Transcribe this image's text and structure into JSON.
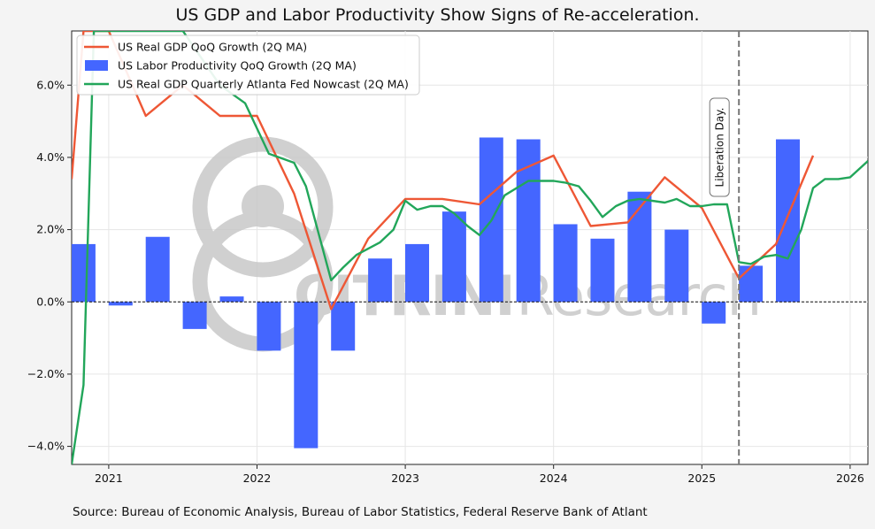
{
  "title": "US GDP and Labor Productivity Show Signs of Re-acceleration.",
  "source": "Source: Bureau of Economic Analysis, Bureau of Labor Statistics, Federal Reserve Bank of Atlant",
  "watermark": {
    "bold": "CITRINI",
    "light": "Research"
  },
  "chart_data": {
    "type": "bar",
    "title": "US GDP and Labor Productivity Show Signs of Re-acceleration.",
    "xlim": [
      2020.75,
      2026.12
    ],
    "ylim": [
      -4.5,
      7.5
    ],
    "x_ticks": [
      2021,
      2022,
      2023,
      2024,
      2025,
      2026
    ],
    "x_tick_labels": [
      "2021",
      "2022",
      "2023",
      "2024",
      "2025",
      "2026"
    ],
    "y_ticks": [
      -4,
      -2,
      0,
      2,
      4,
      6
    ],
    "y_tick_labels": [
      "−4.0%",
      "−2.0%",
      "0.0%",
      "2.0%",
      "4.0%",
      "6.0%"
    ],
    "grid": true,
    "legend_position": "top-left",
    "zero_line": true,
    "annotations": [
      {
        "x": 2025.25,
        "text": "Liberation Day."
      }
    ],
    "series": [
      {
        "name": "US Real GDP QoQ Growth (2Q MA)",
        "kind": "line",
        "color": "#ee5735",
        "points": [
          [
            2020.75,
            3.4
          ],
          [
            2020.83,
            7.5
          ],
          [
            2021.0,
            7.5
          ],
          [
            2021.25,
            5.15
          ],
          [
            2021.5,
            6.0
          ],
          [
            2021.75,
            5.15
          ],
          [
            2022.0,
            5.15
          ],
          [
            2022.25,
            3.0
          ],
          [
            2022.5,
            -0.2
          ],
          [
            2022.75,
            1.75
          ],
          [
            2023.0,
            2.85
          ],
          [
            2023.25,
            2.85
          ],
          [
            2023.5,
            2.7
          ],
          [
            2023.75,
            3.6
          ],
          [
            2024.0,
            4.05
          ],
          [
            2024.25,
            2.1
          ],
          [
            2024.5,
            2.2
          ],
          [
            2024.75,
            3.45
          ],
          [
            2025.0,
            2.6
          ],
          [
            2025.25,
            0.65
          ],
          [
            2025.5,
            1.6
          ],
          [
            2025.75,
            4.05
          ]
        ]
      },
      {
        "name": "US Labor Productivity QoQ Growth (2Q MA)",
        "kind": "bar",
        "color": "#4466ff",
        "x": [
          2020.83,
          2021.08,
          2021.33,
          2021.58,
          2021.83,
          2022.08,
          2022.33,
          2022.58,
          2022.83,
          2023.08,
          2023.33,
          2023.58,
          2023.83,
          2024.08,
          2024.33,
          2024.58,
          2024.83,
          2025.08,
          2025.33,
          2025.58
        ],
        "values": [
          1.6,
          -0.1,
          1.8,
          -0.75,
          0.15,
          -1.35,
          -4.05,
          -1.35,
          1.2,
          1.6,
          2.5,
          4.55,
          4.5,
          2.15,
          1.75,
          3.05,
          2.0,
          -0.6,
          1.0,
          4.5
        ]
      },
      {
        "name": "US Real GDP Quarterly Atlanta Fed Nowcast (2Q MA)",
        "kind": "line",
        "color": "#22a65a",
        "points": [
          [
            2020.75,
            -4.5
          ],
          [
            2020.83,
            -2.3
          ],
          [
            2020.9,
            7.5
          ],
          [
            2021.5,
            7.5
          ],
          [
            2021.75,
            6.0
          ],
          [
            2021.92,
            5.5
          ],
          [
            2022.08,
            4.1
          ],
          [
            2022.25,
            3.85
          ],
          [
            2022.33,
            3.2
          ],
          [
            2022.5,
            0.6
          ],
          [
            2022.58,
            0.95
          ],
          [
            2022.67,
            1.3
          ],
          [
            2022.83,
            1.65
          ],
          [
            2022.92,
            2.0
          ],
          [
            2023.0,
            2.8
          ],
          [
            2023.08,
            2.55
          ],
          [
            2023.17,
            2.65
          ],
          [
            2023.25,
            2.65
          ],
          [
            2023.33,
            2.45
          ],
          [
            2023.42,
            2.1
          ],
          [
            2023.5,
            1.85
          ],
          [
            2023.58,
            2.25
          ],
          [
            2023.67,
            2.95
          ],
          [
            2023.83,
            3.35
          ],
          [
            2024.0,
            3.35
          ],
          [
            2024.08,
            3.3
          ],
          [
            2024.17,
            3.2
          ],
          [
            2024.25,
            2.8
          ],
          [
            2024.33,
            2.35
          ],
          [
            2024.42,
            2.65
          ],
          [
            2024.5,
            2.8
          ],
          [
            2024.58,
            2.85
          ],
          [
            2024.75,
            2.75
          ],
          [
            2024.83,
            2.85
          ],
          [
            2024.92,
            2.65
          ],
          [
            2025.0,
            2.65
          ],
          [
            2025.08,
            2.7
          ],
          [
            2025.17,
            2.7
          ],
          [
            2025.25,
            1.1
          ],
          [
            2025.33,
            1.05
          ],
          [
            2025.42,
            1.25
          ],
          [
            2025.5,
            1.3
          ],
          [
            2025.58,
            1.2
          ],
          [
            2025.67,
            2.0
          ],
          [
            2025.75,
            3.15
          ],
          [
            2025.83,
            3.4
          ],
          [
            2025.92,
            3.4
          ],
          [
            2026.0,
            3.45
          ],
          [
            2026.12,
            3.9
          ]
        ]
      }
    ]
  }
}
